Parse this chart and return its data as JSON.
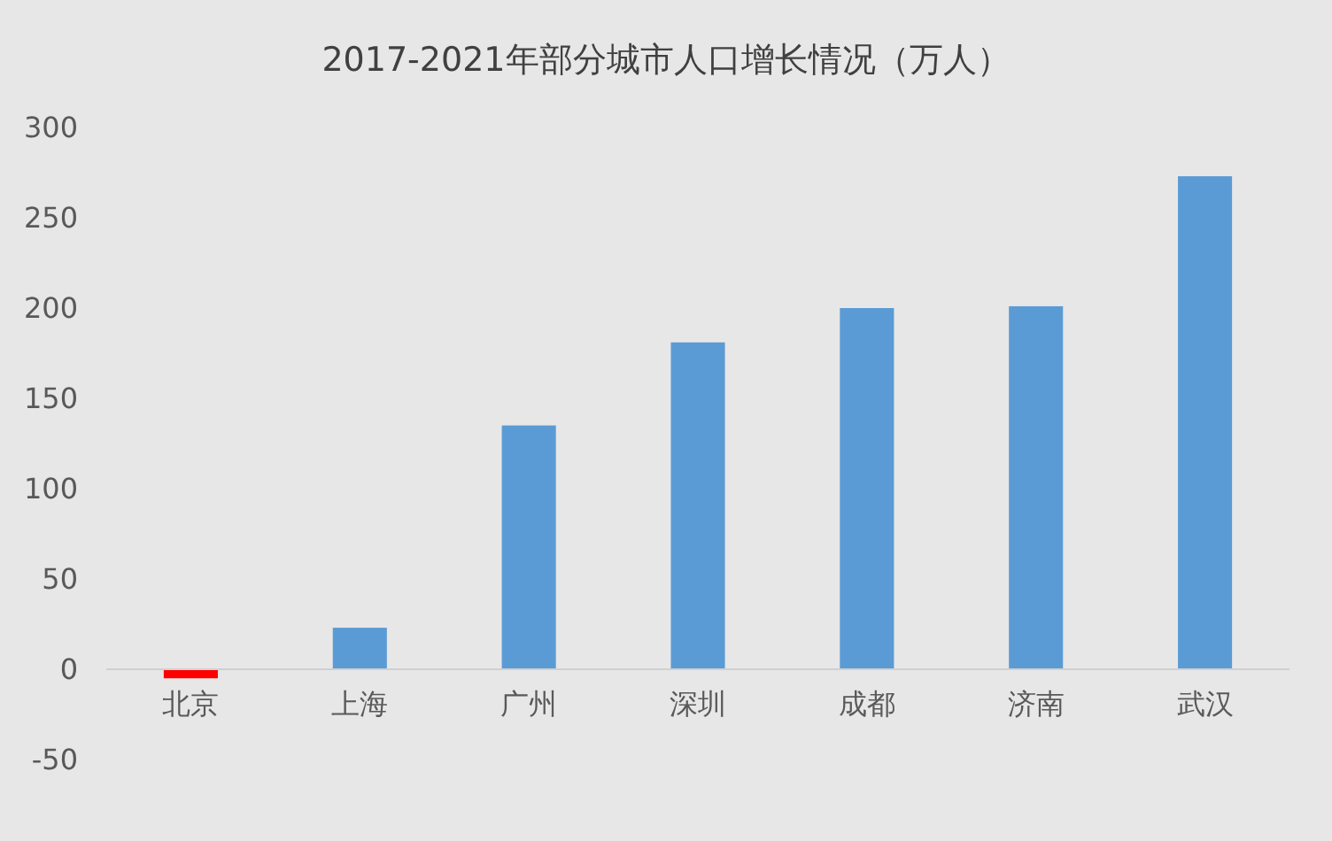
{
  "chart_data": {
    "type": "bar",
    "title": "2017-2021年部分城市人口增长情况（万人）",
    "categories": [
      "北京",
      "上海",
      "广州",
      "深圳",
      "成都",
      "济南",
      "武汉"
    ],
    "values": [
      -5,
      23,
      135,
      181,
      200,
      201,
      273
    ],
    "colors": [
      "#ff0000",
      "#5b9bd5",
      "#5b9bd5",
      "#5b9bd5",
      "#5b9bd5",
      "#5b9bd5",
      "#5b9bd5"
    ],
    "ylim": [
      -50,
      300
    ],
    "yticks": [
      -50,
      0,
      50,
      100,
      150,
      200,
      250,
      300
    ]
  }
}
